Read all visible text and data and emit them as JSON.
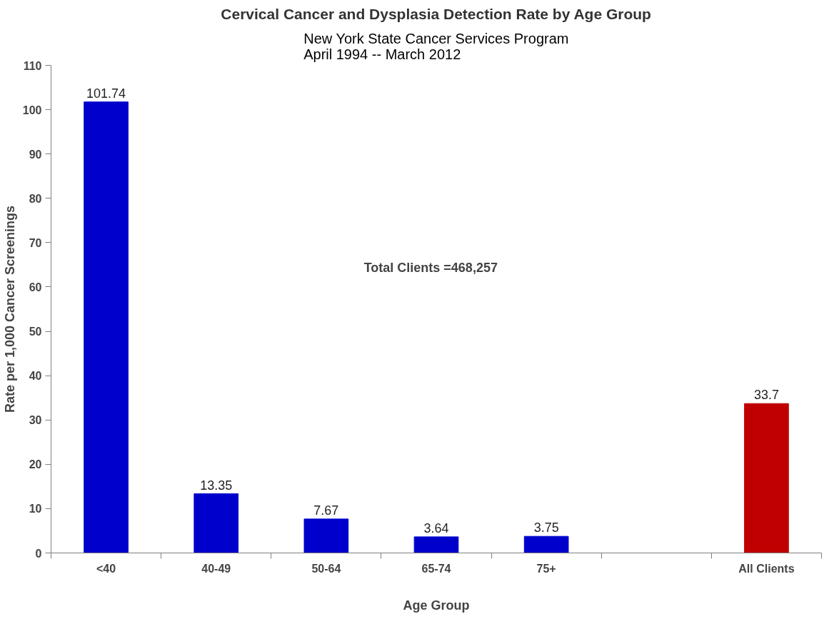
{
  "chart_data": {
    "type": "bar",
    "title": "Cervical Cancer and Dysplasia Detection Rate by Age Group",
    "subtitle": "New York State Cancer Services Program\nApril 1994 -- March 2012",
    "xlabel": "Age Group",
    "ylabel": "Rate per 1,000 Cancer Screenings",
    "categories": [
      "<40",
      "40-49",
      "50-64",
      "65-74",
      "75+",
      null,
      "All Clients"
    ],
    "values": [
      101.74,
      13.35,
      7.67,
      3.64,
      3.75,
      null,
      33.7
    ],
    "colors": [
      "#0000cc",
      "#0000cc",
      "#0000cc",
      "#0000cc",
      "#0000cc",
      "#0000cc",
      "#c00000"
    ],
    "ylim": [
      0,
      110
    ],
    "yticks": [
      0,
      10,
      20,
      30,
      40,
      50,
      60,
      70,
      80,
      90,
      100,
      110
    ],
    "data_labels": true,
    "grid": false,
    "annotations": [
      "Total Clients =468,257"
    ]
  }
}
